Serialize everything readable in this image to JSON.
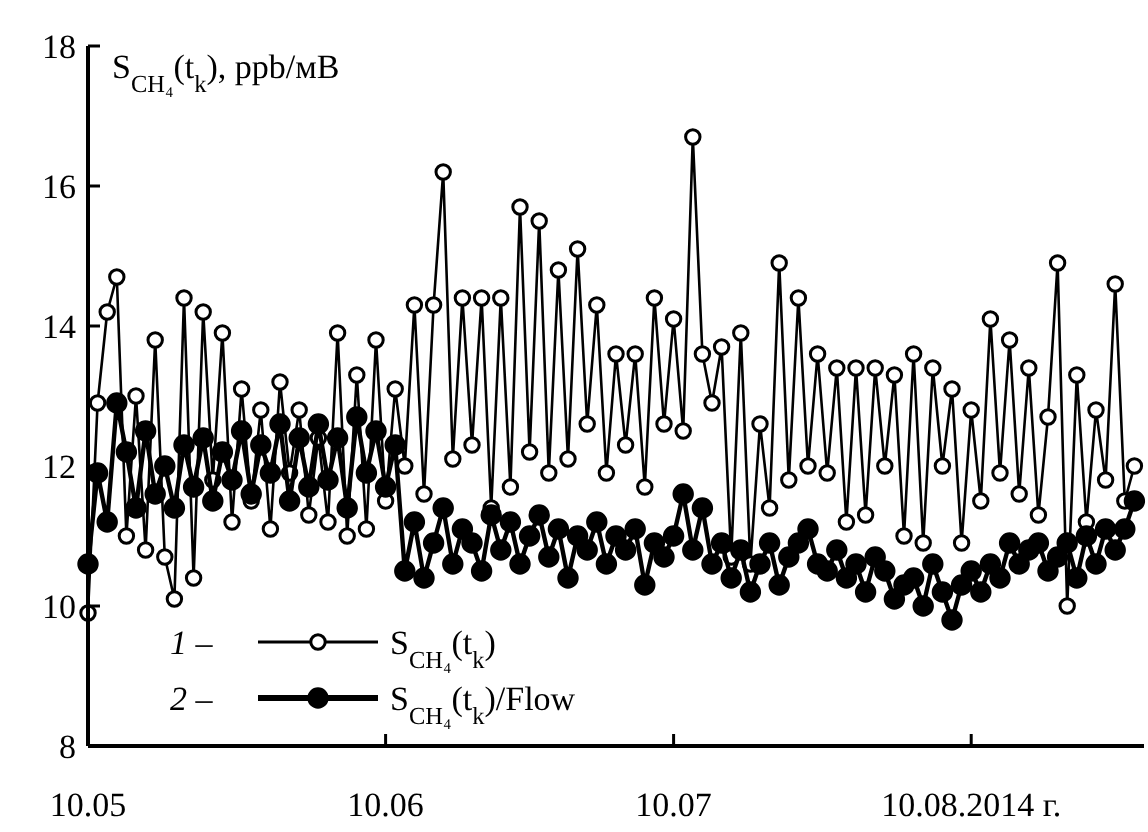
{
  "chart_data": {
    "type": "line",
    "ylabel": "S$_{CH₄}$(t$_{k}$), ppb/мВ",
    "x": [
      "2014-05-10",
      "2014-05-11",
      "2014-05-12",
      "2014-05-13",
      "2014-05-14",
      "2014-05-15",
      "2014-05-16",
      "2014-05-17",
      "2014-05-18",
      "2014-05-19",
      "2014-05-20",
      "2014-05-21",
      "2014-05-22",
      "2014-05-23",
      "2014-05-24",
      "2014-05-25",
      "2014-05-26",
      "2014-05-27",
      "2014-05-28",
      "2014-05-29",
      "2014-05-30",
      "2014-05-31",
      "2014-06-01",
      "2014-06-02",
      "2014-06-03",
      "2014-06-04",
      "2014-06-05",
      "2014-06-06",
      "2014-06-07",
      "2014-06-08",
      "2014-06-09",
      "2014-06-10",
      "2014-06-11",
      "2014-06-12",
      "2014-06-13",
      "2014-06-14",
      "2014-06-15",
      "2014-06-16",
      "2014-06-17",
      "2014-06-18",
      "2014-06-19",
      "2014-06-20",
      "2014-06-21",
      "2014-06-22",
      "2014-06-23",
      "2014-06-24",
      "2014-06-25",
      "2014-06-26",
      "2014-06-27",
      "2014-06-28",
      "2014-06-29",
      "2014-06-30",
      "2014-07-01",
      "2014-07-02",
      "2014-07-03",
      "2014-07-04",
      "2014-07-05",
      "2014-07-06",
      "2014-07-07",
      "2014-07-08",
      "2014-07-09",
      "2014-07-10",
      "2014-07-11",
      "2014-07-12",
      "2014-07-13",
      "2014-07-14",
      "2014-07-15",
      "2014-07-16",
      "2014-07-17",
      "2014-07-18",
      "2014-07-19",
      "2014-07-20",
      "2014-07-21",
      "2014-07-22",
      "2014-07-23",
      "2014-07-24",
      "2014-07-25",
      "2014-07-26",
      "2014-07-27",
      "2014-07-28",
      "2014-07-29",
      "2014-07-30",
      "2014-07-31",
      "2014-08-01",
      "2014-08-02",
      "2014-08-03",
      "2014-08-04",
      "2014-08-05",
      "2014-08-06",
      "2014-08-07",
      "2014-08-08",
      "2014-08-09",
      "2014-08-10",
      "2014-08-11",
      "2014-08-12",
      "2014-08-13",
      "2014-08-14",
      "2014-08-15",
      "2014-08-16",
      "2014-08-17",
      "2014-08-18",
      "2014-08-19",
      "2014-08-20",
      "2014-08-21",
      "2014-08-22",
      "2014-08-23",
      "2014-08-24",
      "2014-08-25",
      "2014-08-26",
      "2014-08-27"
    ],
    "series": [
      {
        "name": "S$_{CH₄}$(t$_{k}$)",
        "color": "#000000",
        "values": [
          9.9,
          12.9,
          14.2,
          14.7,
          11.0,
          13.0,
          10.8,
          13.8,
          10.7,
          10.1,
          14.4,
          10.4,
          14.2,
          11.8,
          13.9,
          11.2,
          13.1,
          11.5,
          12.8,
          11.1,
          13.2,
          11.9,
          12.8,
          11.3,
          12.4,
          11.2,
          13.9,
          11.0,
          13.3,
          11.1,
          13.8,
          11.5,
          13.1,
          12.0,
          14.3,
          11.6,
          14.3,
          16.2,
          12.1,
          14.4,
          12.3,
          14.4,
          11.4,
          14.4,
          11.7,
          15.7,
          12.2,
          15.5,
          11.9,
          14.8,
          12.1,
          15.1,
          12.6,
          14.3,
          11.9,
          13.6,
          12.3,
          13.6,
          11.7,
          14.4,
          12.6,
          14.1,
          12.5,
          16.7,
          13.6,
          12.9,
          13.7,
          10.7,
          13.9,
          10.6,
          12.6,
          11.4,
          14.9,
          11.8,
          14.4,
          12.0,
          13.6,
          11.9,
          13.4,
          11.2,
          13.4,
          11.3,
          13.4,
          12.0,
          13.3,
          11.0,
          13.6,
          10.9,
          13.4,
          12.0,
          13.1,
          10.9,
          12.8,
          11.5,
          14.1,
          11.9,
          13.8,
          11.6,
          13.4,
          11.3,
          12.7,
          14.9,
          10.0,
          13.3,
          11.2,
          12.8,
          11.8,
          14.6,
          11.5,
          12.0
        ]
      },
      {
        "name": "S$_{CH₄}$(t$_{k}$)/Flow",
        "color": "#000000",
        "values": [
          10.6,
          11.9,
          11.2,
          12.9,
          12.2,
          11.4,
          12.5,
          11.6,
          12.0,
          11.4,
          12.3,
          11.7,
          12.4,
          11.5,
          12.2,
          11.8,
          12.5,
          11.6,
          12.3,
          11.9,
          12.6,
          11.5,
          12.4,
          11.7,
          12.6,
          11.8,
          12.4,
          11.4,
          12.7,
          11.9,
          12.5,
          11.7,
          12.3,
          10.5,
          11.2,
          10.4,
          10.9,
          11.4,
          10.6,
          11.1,
          10.9,
          10.5,
          11.3,
          10.8,
          11.2,
          10.6,
          11.0,
          11.3,
          10.7,
          11.1,
          10.4,
          11.0,
          10.8,
          11.2,
          10.6,
          11.0,
          10.8,
          11.1,
          10.3,
          10.9,
          10.7,
          11.0,
          11.6,
          10.8,
          11.4,
          10.6,
          10.9,
          10.4,
          10.8,
          10.2,
          10.6,
          10.9,
          10.3,
          10.7,
          10.9,
          11.1,
          10.6,
          10.5,
          10.8,
          10.4,
          10.6,
          10.2,
          10.7,
          10.5,
          10.1,
          10.3,
          10.4,
          10.0,
          10.6,
          10.2,
          9.8,
          10.3,
          10.5,
          10.2,
          10.6,
          10.4,
          10.9,
          10.6,
          10.8,
          10.9,
          10.5,
          10.7,
          10.9,
          10.4,
          11.0,
          10.6,
          11.1,
          10.8,
          11.1,
          11.5
        ]
      }
    ],
    "xlim": [
      "2014-05-10",
      "2014-08-28"
    ],
    "xticks": [
      {
        "value": "2014-05-10",
        "label": "10.05"
      },
      {
        "value": "2014-06-10",
        "label": "10.06"
      },
      {
        "value": "2014-07-10",
        "label": "10.07"
      },
      {
        "value": "2014-08-10",
        "label": "10.08.2014 г."
      }
    ],
    "ylim": [
      8,
      18
    ],
    "yticks": [
      8,
      10,
      12,
      14,
      16,
      18
    ],
    "annotations": [
      "1 –",
      "2 –"
    ],
    "legend": "bottom left",
    "marker": "circle",
    "line_style": "solid"
  }
}
